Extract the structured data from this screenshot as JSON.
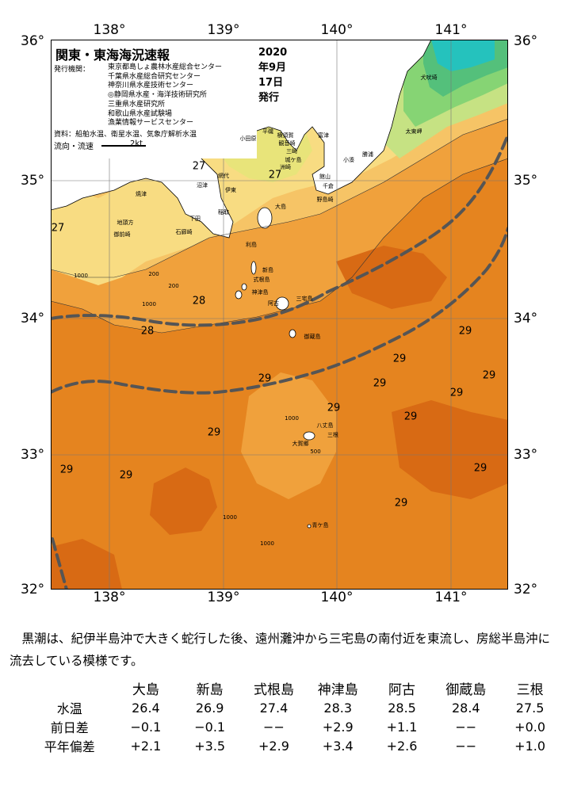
{
  "map": {
    "title": "関東・東海海況速報",
    "date": "2020年9月17日 発行",
    "issuer_label": "発行機関：",
    "issuers": [
      "東京都島しょ農林水産総合センター",
      "千葉県水産総合研究センター",
      "神奈川県水産技術センター",
      "◎静岡県水産・海洋技術研究所",
      "三重県水産研究所",
      "和歌山県水産試験場",
      "漁業情報サービスセンター"
    ],
    "sources": "資料：船舶水温、衛星水温、気象庁解析水温",
    "current_label": "流向・流速",
    "current_scale": "2kt",
    "lon_labels": [
      "138°",
      "139°",
      "140°",
      "141°"
    ],
    "lat_labels": [
      "36°",
      "35°",
      "34°",
      "33°",
      "32°"
    ],
    "temperature_labels": [
      "27",
      "27",
      "27",
      "28",
      "28",
      "29",
      "29",
      "29",
      "29",
      "29",
      "29",
      "29",
      "29",
      "29",
      "29",
      "29",
      "29",
      "29"
    ],
    "place_labels": [
      "犬吠埼",
      "太東岬",
      "勝浦",
      "小湊",
      "洲崎",
      "平磯",
      "観音崎",
      "横須賀",
      "富津",
      "館山",
      "千倉",
      "野島崎",
      "城ケ島",
      "三崎",
      "小田原",
      "沼津",
      "伊東",
      "網代",
      "焼津",
      "御前崎",
      "地頭方",
      "下田",
      "稲取",
      "石廊崎",
      "大島",
      "利島",
      "新島",
      "式根島",
      "神津島",
      "三宅島",
      "阿古",
      "御蔵島",
      "八丈島",
      "三根",
      "大賀郷",
      "青ケ島",
      "1000",
      "200",
      "500",
      "1000",
      "1000",
      "1000",
      "200",
      "1000"
    ],
    "colors": {
      "t29_dark": "#d86a14",
      "t29": "#e5841f",
      "t28": "#f0a13c",
      "t27": "#f6c466",
      "t26": "#f8dc82",
      "t25": "#e8e47a",
      "t24": "#c6e283",
      "t23": "#86d474",
      "t22": "#54c07b",
      "t21": "#25c2bd",
      "land": "#ffffff",
      "kuroshio_axis": "#555555"
    }
  },
  "comment": "　黒潮は、紀伊半島沖で大きく蛇行した後、遠州灘沖から三宅島の南付近を東流し、房総半島沖に流去している模様です。",
  "table": {
    "columns": [
      "大島",
      "新島",
      "式根島",
      "神津島",
      "阿古",
      "御蔵島",
      "三根"
    ],
    "rows": [
      {
        "label": "水温",
        "values": [
          "26.4",
          "26.9",
          "27.4",
          "28.3",
          "28.5",
          "28.4",
          "27.5"
        ]
      },
      {
        "label": "前日差",
        "values": [
          "−0.1",
          "−0.1",
          "−−",
          "+2.9",
          "+1.1",
          "−−",
          "+0.0"
        ]
      },
      {
        "label": "平年偏差",
        "values": [
          "+2.1",
          "+3.5",
          "+2.9",
          "+3.4",
          "+2.6",
          "−−",
          "+1.0"
        ]
      }
    ]
  }
}
